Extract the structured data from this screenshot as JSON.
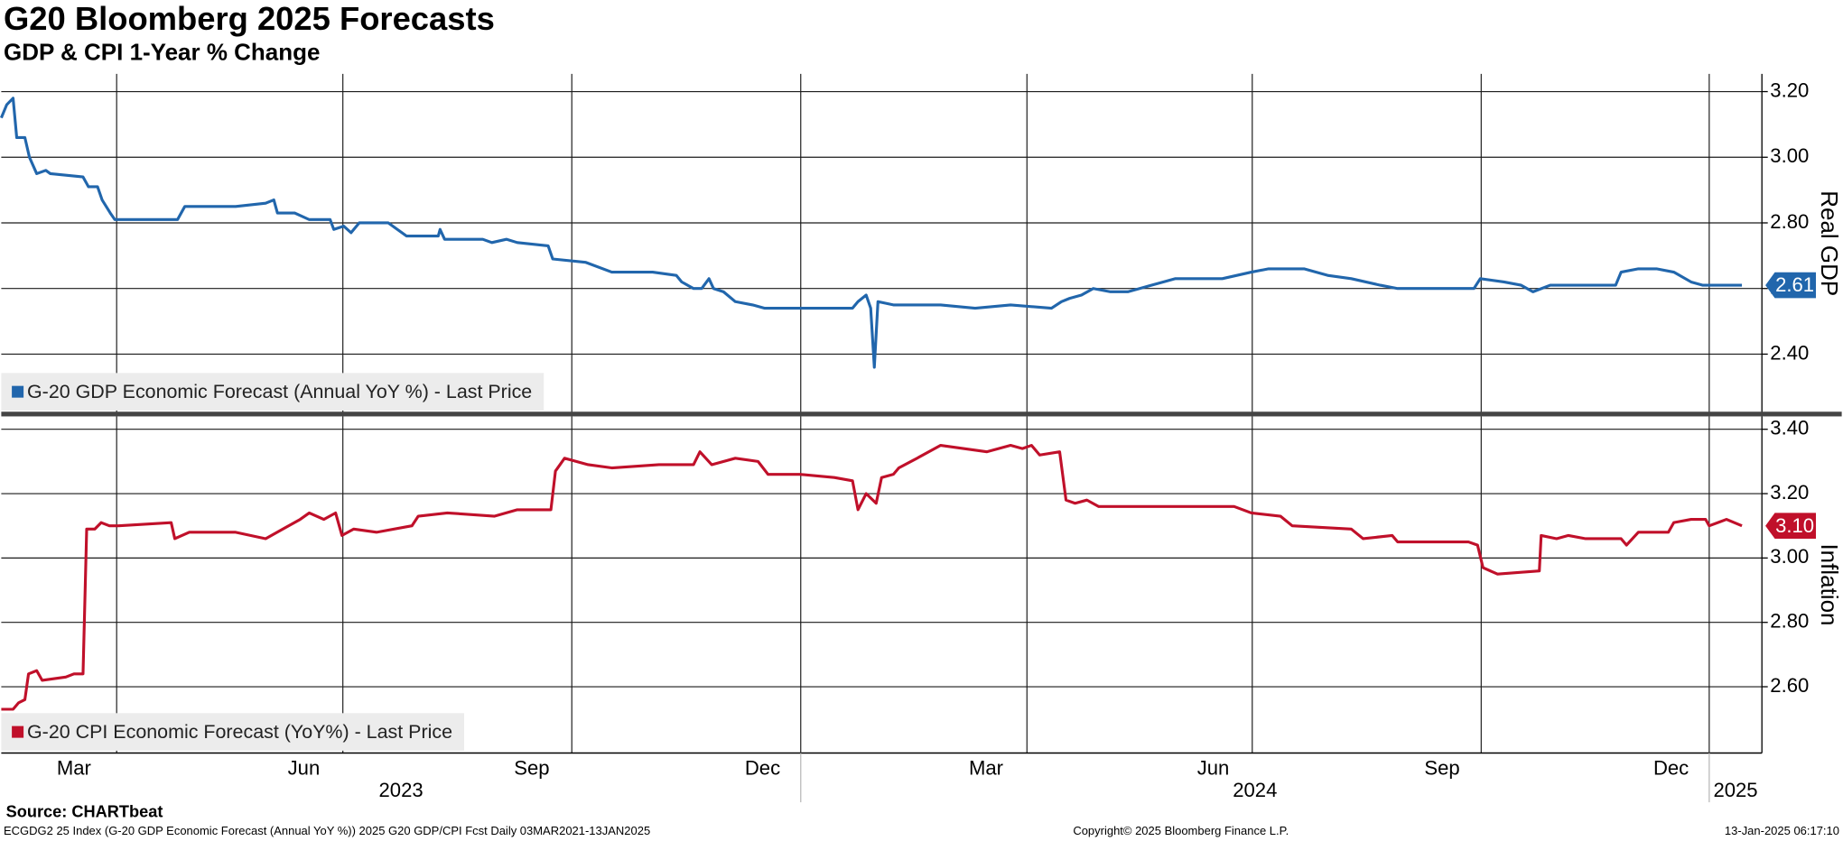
{
  "title": "G20 Bloomberg 2025 Forecasts",
  "subtitle": "GDP & CPI 1-Year % Change",
  "source": "Source: CHARTbeat",
  "footer_left": "ECGDG2 25 Index (G-20 GDP Economic Forecast (Annual YoY %)) 2025 G20 GDP/CPI Fcst  Daily 03MAR2021-13JAN2025",
  "footer_center": "Copyright© 2025 Bloomberg Finance L.P.",
  "footer_right": "13-Jan-2025 06:17:10",
  "chart_data": [
    {
      "type": "line",
      "ylabel": "Real GDP",
      "grid": true,
      "legend": "lower left",
      "xlim": [
        2023.12,
        2025.058
      ],
      "xgrid": [
        2023.247,
        2023.496,
        2023.748,
        2024.0,
        2024.249,
        2024.497,
        2024.749,
        2025.0
      ],
      "ylim": [
        2.221,
        3.254
      ],
      "yticks": [
        {
          "value": 2.4,
          "label": "2.40"
        },
        {
          "value": 2.6,
          "label": "2.60"
        },
        {
          "value": 2.8,
          "label": "2.80"
        },
        {
          "value": 3.0,
          "label": "3.00"
        },
        {
          "value": 3.2,
          "label": "3.20"
        }
      ],
      "series": [
        {
          "name": "G-20 GDP Economic Forecast (Annual YoY %) - Last Price",
          "color": "#2166ac",
          "last_label": "2.61",
          "x": [
            2023.12,
            2023.126,
            2023.133,
            2023.137,
            2023.146,
            2023.151,
            2023.159,
            2023.169,
            2023.174,
            2023.21,
            2023.216,
            2023.226,
            2023.231,
            2023.24,
            2023.245,
            2023.275,
            2023.294,
            2023.314,
            2023.322,
            2023.378,
            2023.411,
            2023.42,
            2023.424,
            2023.443,
            2023.459,
            2023.482,
            2023.486,
            2023.497,
            2023.505,
            2023.514,
            2023.523,
            2023.546,
            2023.566,
            2023.601,
            2023.603,
            2023.608,
            2023.65,
            2023.66,
            2023.676,
            2023.688,
            2023.722,
            2023.727,
            2023.763,
            2023.792,
            2023.837,
            2023.863,
            2023.869,
            2023.882,
            2023.891,
            2023.899,
            2023.904,
            2023.915,
            2023.928,
            2023.947,
            2023.96,
            2023.999,
            2024.057,
            2024.063,
            2024.072,
            2024.077,
            2024.081,
            2024.085,
            2024.102,
            2024.154,
            2024.192,
            2024.231,
            2024.276,
            2024.287,
            2024.296,
            2024.309,
            2024.322,
            2024.341,
            2024.36,
            2024.373,
            2024.399,
            2024.412,
            2024.464,
            2024.496,
            2024.515,
            2024.554,
            2024.567,
            2024.58,
            2024.606,
            2024.638,
            2024.657,
            2024.741,
            2024.748,
            2024.774,
            2024.793,
            2024.806,
            2024.825,
            2024.897,
            2024.903,
            2024.922,
            2024.942,
            2024.961,
            2024.98,
            2024.993,
            2025.036
          ],
          "values": [
            3.12,
            3.16,
            3.18,
            3.06,
            3.06,
            3.0,
            2.95,
            2.96,
            2.95,
            2.94,
            2.91,
            2.91,
            2.87,
            2.83,
            2.81,
            2.81,
            2.81,
            2.81,
            2.85,
            2.85,
            2.86,
            2.87,
            2.83,
            2.83,
            2.81,
            2.81,
            2.78,
            2.79,
            2.77,
            2.8,
            2.8,
            2.8,
            2.76,
            2.76,
            2.78,
            2.75,
            2.75,
            2.74,
            2.75,
            2.74,
            2.73,
            2.69,
            2.68,
            2.65,
            2.65,
            2.64,
            2.62,
            2.6,
            2.6,
            2.63,
            2.6,
            2.59,
            2.56,
            2.55,
            2.54,
            2.54,
            2.54,
            2.56,
            2.58,
            2.54,
            2.36,
            2.56,
            2.55,
            2.55,
            2.54,
            2.55,
            2.54,
            2.56,
            2.57,
            2.58,
            2.6,
            2.59,
            2.59,
            2.6,
            2.62,
            2.63,
            2.63,
            2.65,
            2.66,
            2.66,
            2.65,
            2.64,
            2.63,
            2.61,
            2.6,
            2.6,
            2.63,
            2.62,
            2.61,
            2.59,
            2.61,
            2.61,
            2.65,
            2.66,
            2.66,
            2.65,
            2.62,
            2.61,
            2.61
          ]
        }
      ]
    },
    {
      "type": "line",
      "ylabel": "Inflation",
      "grid": true,
      "legend": "lower left",
      "xlim": [
        2023.12,
        2025.058
      ],
      "xgrid": [
        2023.247,
        2023.496,
        2023.748,
        2024.0,
        2024.249,
        2024.497,
        2024.749,
        2025.0
      ],
      "xticks": [
        {
          "value": 2023.2,
          "label": "Mar"
        },
        {
          "value": 2023.453,
          "label": "Jun"
        },
        {
          "value": 2023.704,
          "label": "Sep"
        },
        {
          "value": 2023.958,
          "label": "Dec"
        },
        {
          "value": 2024.204,
          "label": "Mar"
        },
        {
          "value": 2024.454,
          "label": "Jun"
        },
        {
          "value": 2024.706,
          "label": "Sep"
        },
        {
          "value": 2024.958,
          "label": "Dec"
        }
      ],
      "years": [
        2023,
        2024,
        2025
      ],
      "ylim": [
        2.394,
        3.44
      ],
      "yticks": [
        {
          "value": 2.6,
          "label": "2.60"
        },
        {
          "value": 2.8,
          "label": "2.80"
        },
        {
          "value": 3.0,
          "label": "3.00"
        },
        {
          "value": 3.2,
          "label": "3.20"
        },
        {
          "value": 3.4,
          "label": "3.40"
        }
      ],
      "series": [
        {
          "name": "G-20 CPI Economic Forecast (YoY%) - Last Price",
          "color": "#c0102a",
          "last_label": "3.10",
          "x": [
            2023.12,
            2023.133,
            2023.139,
            2023.146,
            2023.15,
            2023.159,
            2023.165,
            2023.191,
            2023.2,
            2023.21,
            2023.214,
            2023.223,
            2023.23,
            2023.239,
            2023.249,
            2023.307,
            2023.311,
            2023.327,
            2023.378,
            2023.411,
            2023.43,
            2023.449,
            2023.459,
            2023.475,
            2023.488,
            2023.495,
            2023.508,
            2023.533,
            2023.572,
            2023.579,
            2023.611,
            2023.663,
            2023.688,
            2023.725,
            2023.73,
            2023.74,
            2023.766,
            2023.792,
            2023.844,
            2023.863,
            2023.882,
            2023.889,
            2023.902,
            2023.928,
            2023.953,
            2023.964,
            2023.999,
            2024.037,
            2024.057,
            2024.063,
            2024.072,
            2024.083,
            2024.089,
            2024.102,
            2024.108,
            2024.128,
            2024.154,
            2024.205,
            2024.231,
            2024.244,
            2024.254,
            2024.263,
            2024.285,
            2024.292,
            2024.302,
            2024.315,
            2024.328,
            2024.36,
            2024.412,
            2024.477,
            2024.496,
            2024.528,
            2024.541,
            2024.606,
            2024.619,
            2024.651,
            2024.657,
            2024.735,
            2024.745,
            2024.751,
            2024.767,
            2024.813,
            2024.815,
            2024.832,
            2024.845,
            2024.864,
            2024.903,
            2024.909,
            2024.922,
            2024.955,
            2024.961,
            2024.98,
            2024.996,
            2025.0,
            2025.019,
            2025.036
          ],
          "values": [
            2.53,
            2.53,
            2.55,
            2.56,
            2.64,
            2.65,
            2.62,
            2.63,
            2.64,
            2.64,
            3.09,
            3.09,
            3.11,
            3.1,
            3.1,
            3.11,
            3.06,
            3.08,
            3.08,
            3.06,
            3.09,
            3.12,
            3.14,
            3.12,
            3.14,
            3.07,
            3.09,
            3.08,
            3.1,
            3.13,
            3.14,
            3.13,
            3.15,
            3.15,
            3.27,
            3.31,
            3.29,
            3.28,
            3.29,
            3.29,
            3.29,
            3.33,
            3.29,
            3.31,
            3.3,
            3.26,
            3.26,
            3.25,
            3.24,
            3.15,
            3.2,
            3.17,
            3.25,
            3.26,
            3.28,
            3.31,
            3.35,
            3.33,
            3.35,
            3.34,
            3.35,
            3.32,
            3.33,
            3.18,
            3.17,
            3.18,
            3.16,
            3.16,
            3.16,
            3.16,
            3.14,
            3.13,
            3.1,
            3.09,
            3.06,
            3.07,
            3.05,
            3.05,
            3.04,
            2.97,
            2.95,
            2.96,
            3.07,
            3.06,
            3.07,
            3.06,
            3.06,
            3.04,
            3.08,
            3.08,
            3.11,
            3.12,
            3.12,
            3.1,
            3.12,
            3.1
          ]
        }
      ]
    }
  ]
}
